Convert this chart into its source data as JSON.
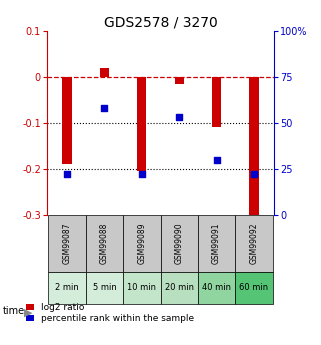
{
  "title": "GDS2578 / 3270",
  "categories": [
    "GSM99087",
    "GSM99088",
    "GSM99089",
    "GSM99090",
    "GSM99091",
    "GSM99092"
  ],
  "time_labels": [
    "2 min",
    "5 min",
    "10 min",
    "20 min",
    "40 min",
    "60 min"
  ],
  "log2_ratio": [
    -0.19,
    0.02,
    -0.205,
    -0.015,
    -0.11,
    -0.305
  ],
  "percentile_rank": [
    22,
    58,
    22,
    53,
    30,
    22
  ],
  "ylim_left": [
    -0.3,
    0.1
  ],
  "ylim_right": [
    0,
    100
  ],
  "bar_color": "#cc0000",
  "dot_color": "#0000cc",
  "bar_width": 0.25,
  "gsm_bg_color": "#c8c8c8",
  "time_bg_colors": [
    "#d4edda",
    "#d4edda",
    "#c3e6cb",
    "#b8dfbf",
    "#90d4a0",
    "#55c475"
  ],
  "legend_log2": "log2 ratio",
  "legend_percentile": "percentile rank within the sample",
  "title_fontsize": 10,
  "tick_fontsize": 7,
  "gsm_fontsize": 5.5,
  "time_fontsize": 6,
  "legend_fontsize": 6.5
}
